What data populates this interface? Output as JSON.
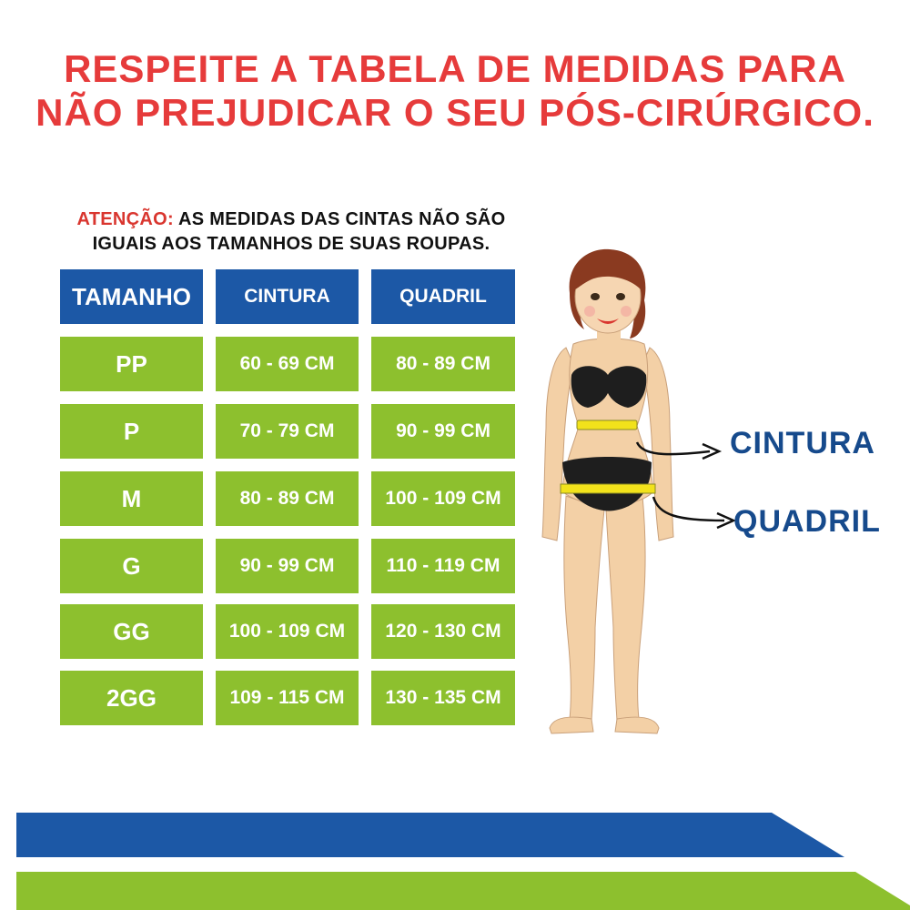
{
  "title": {
    "line1": "RESPEITE A TABELA DE MEDIDAS PARA",
    "line2": "NÃO PREJUDICAR O SEU PÓS-CIRÚRGICO."
  },
  "notice": {
    "label": "ATENÇÃO:",
    "text_line1": " AS MEDIDAS DAS CINTAS NÃO SÃO",
    "text_line2": "IGUAIS AOS TAMANHOS DE SUAS ROUPAS."
  },
  "table": {
    "headers": [
      "TAMANHO",
      "CINTURA",
      "QUADRIL"
    ],
    "rows": [
      [
        "PP",
        "60 - 69 CM",
        "80 - 89 CM"
      ],
      [
        "P",
        "70 - 79 CM",
        "90 - 99 CM"
      ],
      [
        "M",
        "80 - 89 CM",
        "100 - 109 CM"
      ],
      [
        "G",
        "90 - 99 CM",
        "110 - 119 CM"
      ],
      [
        "GG",
        "100 - 109 CM",
        "120 - 130 CM"
      ],
      [
        "2GG",
        "109 - 115 CM",
        "130 - 135 CM"
      ]
    ]
  },
  "figure_labels": {
    "waist": "CINTURA",
    "hip": "QUADRIL"
  },
  "colors": {
    "title_red": "#e63b3b",
    "header_blue": "#1c58a6",
    "row_green": "#8dc02e",
    "label_blue": "#164a8c",
    "skin": "#f3d0a6",
    "tape_yellow": "#f2e21b"
  }
}
